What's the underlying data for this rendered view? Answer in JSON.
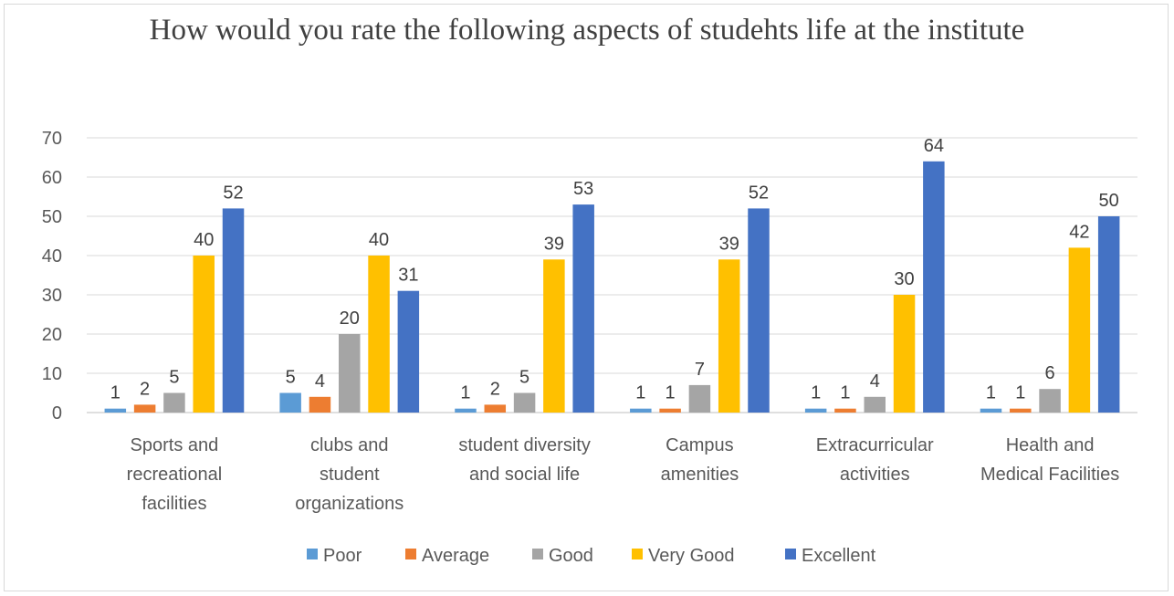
{
  "chart_data": {
    "type": "bar",
    "title": "How would you rate the following aspects of studehts life at the institute",
    "categories": [
      [
        "Sports and",
        "recreational",
        "facilities"
      ],
      [
        "clubs and",
        "student",
        "organizations"
      ],
      [
        "student diversity",
        "and social life"
      ],
      [
        "Campus",
        "amenities"
      ],
      [
        "Extracurricular",
        "activities"
      ],
      [
        "Health and",
        "Medical Facilities"
      ]
    ],
    "series": [
      {
        "name": "Poor",
        "color": "#5b9bd5",
        "values": [
          1,
          5,
          1,
          1,
          1,
          1
        ]
      },
      {
        "name": "Average",
        "color": "#ed7d31",
        "values": [
          2,
          4,
          2,
          1,
          1,
          1
        ]
      },
      {
        "name": "Good",
        "color": "#a5a5a5",
        "values": [
          5,
          20,
          5,
          7,
          4,
          6
        ]
      },
      {
        "name": "Very Good",
        "color": "#ffc000",
        "values": [
          40,
          40,
          39,
          39,
          30,
          42
        ]
      },
      {
        "name": "Excellent",
        "color": "#4472c4",
        "values": [
          52,
          31,
          53,
          52,
          64,
          50
        ]
      }
    ],
    "ylim": [
      0,
      70
    ],
    "yticks": [
      0,
      10,
      20,
      30,
      40,
      50,
      60,
      70
    ],
    "grid": true,
    "legend": "bottom"
  }
}
